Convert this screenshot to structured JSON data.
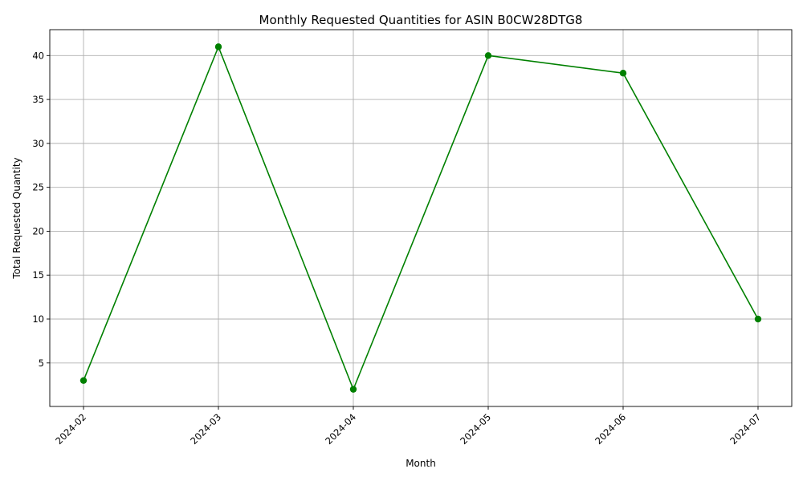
{
  "chart_data": {
    "type": "line",
    "title": "Monthly Requested Quantities for ASIN B0CW28DTG8",
    "xlabel": "Month",
    "ylabel": "Total Requested Quantity",
    "categories": [
      "2024-02",
      "2024-03",
      "2024-04",
      "2024-05",
      "2024-06",
      "2024-07"
    ],
    "series": [
      {
        "values": [
          3,
          41,
          2,
          40,
          38,
          10
        ]
      }
    ],
    "yticks": [
      5,
      10,
      15,
      20,
      25,
      30,
      35,
      40
    ],
    "ylim": [
      0.05,
      42.95
    ],
    "grid": true,
    "line_color": "#008000",
    "marker": "circle",
    "x_tick_rotation_deg": 45
  }
}
